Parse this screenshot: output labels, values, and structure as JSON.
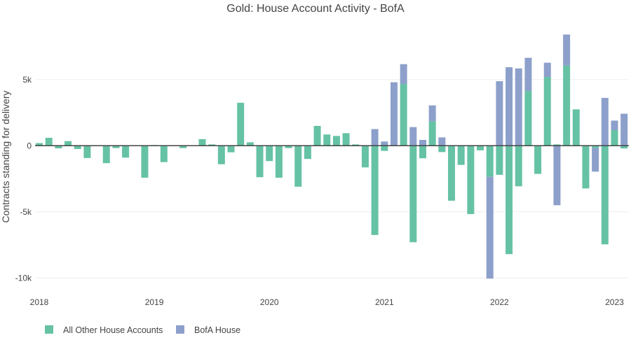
{
  "chart_data": {
    "type": "bar",
    "barmode": "relative",
    "title": "Gold: House Account Activity - BofA",
    "xlabel": "",
    "ylabel": "Contracts standing for delivery",
    "ylim": [
      -10250,
      9170
    ],
    "yticks": [
      {
        "value": 5000,
        "label": "5k"
      },
      {
        "value": 0,
        "label": "0"
      },
      {
        "value": -5000,
        "label": "-5k"
      },
      {
        "value": -10000,
        "label": "-10k"
      }
    ],
    "xticks": [
      {
        "month_index": 0,
        "label": "2018"
      },
      {
        "month_index": 12,
        "label": "2019"
      },
      {
        "month_index": 24,
        "label": "2020"
      },
      {
        "month_index": 36,
        "label": "2021"
      },
      {
        "month_index": 48,
        "label": "2022"
      },
      {
        "month_index": 60,
        "label": "2023"
      }
    ],
    "start_month": "2018-01",
    "legend_position": "bottom-left",
    "grid": true,
    "series": [
      {
        "name": "All Other House Accounts",
        "color": "#66c2a5",
        "values": [
          200,
          600,
          -200,
          350,
          -250,
          -930,
          0,
          -1320,
          -180,
          -900,
          0,
          -2420,
          50,
          -1240,
          0,
          -180,
          20,
          500,
          100,
          -1400,
          -500,
          3250,
          260,
          -2380,
          -1160,
          -2420,
          -180,
          -3100,
          -1000,
          1500,
          850,
          740,
          950,
          100,
          -1640,
          -6750,
          -390,
          0,
          4670,
          -7300,
          -950,
          1850,
          -480,
          -4160,
          -1450,
          -5170,
          -350,
          -2350,
          -2200,
          -8200,
          -3070,
          4140,
          -2130,
          5200,
          100,
          6070,
          2750,
          -3230,
          -180,
          -7460,
          1180,
          -210
        ]
      },
      {
        "name": "BofA House",
        "color": "#8da0cb",
        "values": [
          0,
          0,
          0,
          0,
          0,
          0,
          0,
          0,
          0,
          0,
          0,
          0,
          0,
          0,
          0,
          0,
          0,
          0,
          0,
          0,
          0,
          0,
          0,
          0,
          0,
          0,
          0,
          0,
          0,
          0,
          0,
          0,
          0,
          0,
          0,
          1260,
          320,
          4800,
          1500,
          1410,
          440,
          1200,
          630,
          0,
          0,
          0,
          0,
          -7700,
          4880,
          5940,
          5850,
          2510,
          0,
          1080,
          -4500,
          2340,
          0,
          0,
          -1780,
          3620,
          720,
          2420
        ]
      }
    ]
  }
}
